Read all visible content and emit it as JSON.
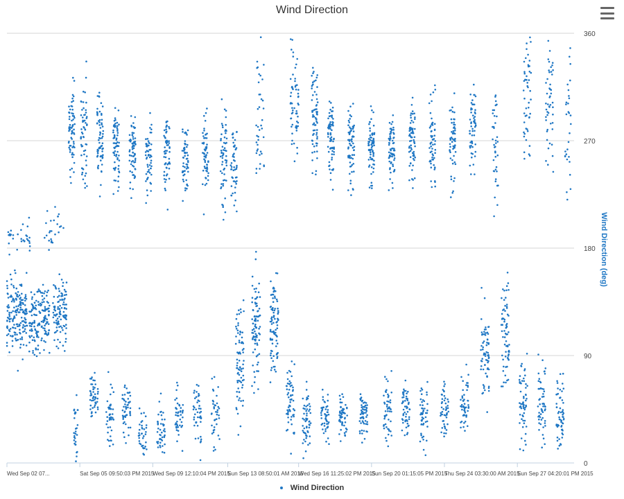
{
  "chart_data": {
    "type": "scatter",
    "title": "Wind Direction",
    "ylabel": "Wind Direction (deg)",
    "xlabel": "",
    "ylim": [
      0,
      360
    ],
    "y_ticks": [
      0,
      90,
      180,
      270,
      360
    ],
    "y_axis_side": "right",
    "grid": true,
    "legend": {
      "placement": "bottom-center",
      "entries": [
        "Wind Direction"
      ]
    },
    "x_tick_labels": [
      "Wed Sep 02 07...",
      "Sat Sep 05 09:50:03 PM 2015",
      "Wed Sep 09 12:10:04 PM 2015",
      "Sun Sep 13 08:50:01 AM 2015",
      "Wed Sep 16 11:25:02 PM 2015",
      "Sun Sep 20 01:15:05 PM 2015",
      "Thu Sep 24 03:30:00 AM 2015",
      "Sun Sep 27 04:20:01 PM 2015"
    ],
    "x_tick_days": [
      0,
      3.6,
      7.2,
      10.9,
      14.4,
      18.0,
      21.6,
      25.2
    ],
    "x_range_days": [
      0,
      28
    ],
    "series": [
      {
        "name": "Wind Direction",
        "color": "#1f77c4",
        "clusters": [
          {
            "day": 0.5,
            "spread": 0.5,
            "center": 125,
            "sd": 22,
            "n": 180
          },
          {
            "day": 1.6,
            "spread": 0.5,
            "center": 120,
            "sd": 22,
            "n": 160
          },
          {
            "day": 2.6,
            "spread": 0.35,
            "center": 125,
            "sd": 20,
            "n": 110
          },
          {
            "day": 0.6,
            "spread": 0.6,
            "center": 190,
            "sd": 10,
            "n": 30
          },
          {
            "day": 2.3,
            "spread": 0.5,
            "center": 195,
            "sd": 12,
            "n": 25
          },
          {
            "day": 3.2,
            "spread": 0.15,
            "center": 280,
            "sd": 25,
            "n": 70
          },
          {
            "day": 3.8,
            "spread": 0.15,
            "center": 280,
            "sd": 30,
            "n": 60
          },
          {
            "day": 4.6,
            "spread": 0.15,
            "center": 270,
            "sd": 28,
            "n": 70
          },
          {
            "day": 5.4,
            "spread": 0.15,
            "center": 265,
            "sd": 25,
            "n": 70
          },
          {
            "day": 6.2,
            "spread": 0.15,
            "center": 262,
            "sd": 22,
            "n": 70
          },
          {
            "day": 7.0,
            "spread": 0.15,
            "center": 258,
            "sd": 22,
            "n": 60
          },
          {
            "day": 7.9,
            "spread": 0.15,
            "center": 262,
            "sd": 22,
            "n": 60
          },
          {
            "day": 8.8,
            "spread": 0.15,
            "center": 258,
            "sd": 20,
            "n": 60
          },
          {
            "day": 9.8,
            "spread": 0.15,
            "center": 255,
            "sd": 25,
            "n": 60
          },
          {
            "day": 10.7,
            "spread": 0.15,
            "center": 255,
            "sd": 28,
            "n": 60
          },
          {
            "day": 11.2,
            "spread": 0.15,
            "center": 250,
            "sd": 30,
            "n": 50
          },
          {
            "day": 12.5,
            "spread": 0.2,
            "center": 290,
            "sd": 40,
            "n": 40
          },
          {
            "day": 14.2,
            "spread": 0.2,
            "center": 300,
            "sd": 35,
            "n": 60
          },
          {
            "day": 15.2,
            "spread": 0.15,
            "center": 290,
            "sd": 30,
            "n": 70
          },
          {
            "day": 16.0,
            "spread": 0.15,
            "center": 275,
            "sd": 25,
            "n": 70
          },
          {
            "day": 17.0,
            "spread": 0.15,
            "center": 265,
            "sd": 25,
            "n": 70
          },
          {
            "day": 18.0,
            "spread": 0.15,
            "center": 265,
            "sd": 22,
            "n": 70
          },
          {
            "day": 19.0,
            "spread": 0.15,
            "center": 265,
            "sd": 20,
            "n": 70
          },
          {
            "day": 20.0,
            "spread": 0.15,
            "center": 270,
            "sd": 22,
            "n": 70
          },
          {
            "day": 21.0,
            "spread": 0.15,
            "center": 270,
            "sd": 25,
            "n": 60
          },
          {
            "day": 22.0,
            "spread": 0.15,
            "center": 270,
            "sd": 28,
            "n": 60
          },
          {
            "day": 23.0,
            "spread": 0.15,
            "center": 280,
            "sd": 25,
            "n": 60
          },
          {
            "day": 24.1,
            "spread": 0.15,
            "center": 265,
            "sd": 35,
            "n": 40
          },
          {
            "day": 25.7,
            "spread": 0.2,
            "center": 310,
            "sd": 35,
            "n": 50
          },
          {
            "day": 26.8,
            "spread": 0.2,
            "center": 300,
            "sd": 35,
            "n": 50
          },
          {
            "day": 27.7,
            "spread": 0.15,
            "center": 290,
            "sd": 45,
            "n": 30
          },
          {
            "day": 3.4,
            "spread": 0.1,
            "center": 30,
            "sd": 25,
            "n": 30
          },
          {
            "day": 4.3,
            "spread": 0.2,
            "center": 55,
            "sd": 14,
            "n": 50
          },
          {
            "day": 5.1,
            "spread": 0.2,
            "center": 40,
            "sd": 18,
            "n": 45
          },
          {
            "day": 5.9,
            "spread": 0.2,
            "center": 45,
            "sd": 15,
            "n": 50
          },
          {
            "day": 6.7,
            "spread": 0.2,
            "center": 25,
            "sd": 15,
            "n": 40
          },
          {
            "day": 7.6,
            "spread": 0.2,
            "center": 30,
            "sd": 20,
            "n": 45
          },
          {
            "day": 8.5,
            "spread": 0.2,
            "center": 40,
            "sd": 20,
            "n": 45
          },
          {
            "day": 9.4,
            "spread": 0.2,
            "center": 40,
            "sd": 18,
            "n": 45
          },
          {
            "day": 10.3,
            "spread": 0.2,
            "center": 45,
            "sd": 20,
            "n": 40
          },
          {
            "day": 11.5,
            "spread": 0.2,
            "center": 90,
            "sd": 35,
            "n": 80
          },
          {
            "day": 12.3,
            "spread": 0.2,
            "center": 110,
            "sd": 30,
            "n": 90
          },
          {
            "day": 13.2,
            "spread": 0.2,
            "center": 115,
            "sd": 30,
            "n": 90
          },
          {
            "day": 14.0,
            "spread": 0.2,
            "center": 50,
            "sd": 25,
            "n": 60
          },
          {
            "day": 14.8,
            "spread": 0.2,
            "center": 35,
            "sd": 20,
            "n": 60
          },
          {
            "day": 15.7,
            "spread": 0.2,
            "center": 40,
            "sd": 15,
            "n": 50
          },
          {
            "day": 16.6,
            "spread": 0.2,
            "center": 40,
            "sd": 15,
            "n": 55
          },
          {
            "day": 17.6,
            "spread": 0.2,
            "center": 40,
            "sd": 12,
            "n": 60
          },
          {
            "day": 18.8,
            "spread": 0.2,
            "center": 45,
            "sd": 18,
            "n": 50
          },
          {
            "day": 19.7,
            "spread": 0.2,
            "center": 45,
            "sd": 18,
            "n": 55
          },
          {
            "day": 20.6,
            "spread": 0.2,
            "center": 40,
            "sd": 18,
            "n": 50
          },
          {
            "day": 21.6,
            "spread": 0.2,
            "center": 45,
            "sd": 15,
            "n": 50
          },
          {
            "day": 22.6,
            "spread": 0.2,
            "center": 50,
            "sd": 18,
            "n": 50
          },
          {
            "day": 23.6,
            "spread": 0.2,
            "center": 90,
            "sd": 30,
            "n": 70
          },
          {
            "day": 24.6,
            "spread": 0.2,
            "center": 110,
            "sd": 30,
            "n": 70
          },
          {
            "day": 25.5,
            "spread": 0.2,
            "center": 50,
            "sd": 25,
            "n": 60
          },
          {
            "day": 26.4,
            "spread": 0.2,
            "center": 50,
            "sd": 20,
            "n": 55
          },
          {
            "day": 27.3,
            "spread": 0.2,
            "center": 45,
            "sd": 22,
            "n": 60
          }
        ]
      }
    ]
  }
}
